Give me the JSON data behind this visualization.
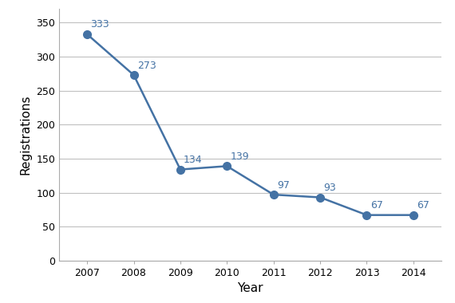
{
  "years": [
    2007,
    2008,
    2009,
    2010,
    2011,
    2012,
    2013,
    2014
  ],
  "values": [
    333,
    273,
    134,
    139,
    97,
    93,
    67,
    67
  ],
  "line_color": "#4472a4",
  "marker_color": "#4472a4",
  "marker_style": "o",
  "marker_size": 7,
  "line_width": 1.8,
  "xlabel": "Year",
  "ylabel": "Registrations",
  "ylim": [
    0,
    370
  ],
  "yticks": [
    0,
    50,
    100,
    150,
    200,
    250,
    300,
    350
  ],
  "annotation_color": "#4472a4",
  "annotation_fontsize": 9,
  "axis_label_fontsize": 11,
  "tick_fontsize": 9,
  "background_color": "#ffffff",
  "plot_background_color": "#ffffff",
  "grid_color": "#c0c0c0",
  "grid_linewidth": 0.8,
  "xlim": [
    2006.4,
    2014.6
  ]
}
